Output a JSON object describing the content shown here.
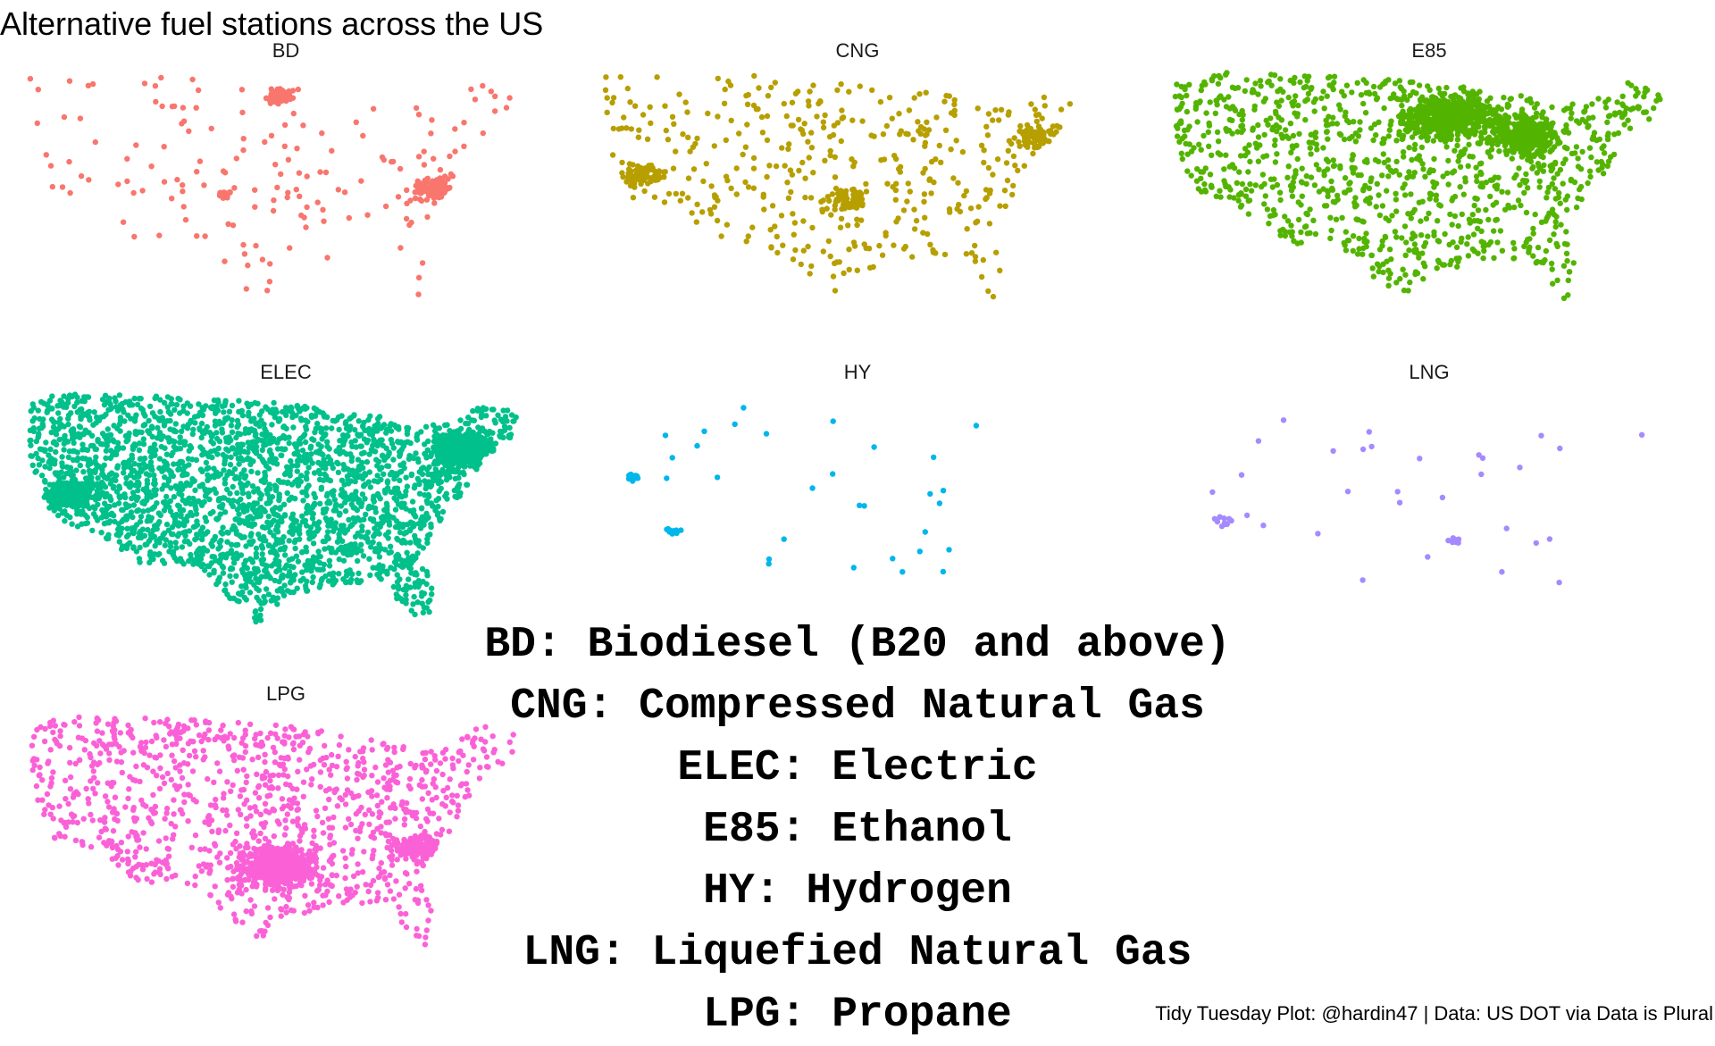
{
  "title": "Alternative fuel stations across the US",
  "caption": "Tidy Tuesday Plot: @hardin47 | Data: US DOT via Data is Plural",
  "panels": [
    {
      "code": "BD",
      "color": "#F8766D",
      "density": "low"
    },
    {
      "code": "CNG",
      "color": "#B79F00",
      "density": "medium"
    },
    {
      "code": "E85",
      "color": "#53B400",
      "density": "high"
    },
    {
      "code": "ELEC",
      "color": "#00C08B",
      "density": "very-high"
    },
    {
      "code": "HY",
      "color": "#00B6EB",
      "density": "very-low"
    },
    {
      "code": "LNG",
      "color": "#A58AFF",
      "density": "very-low"
    },
    {
      "code": "LPG",
      "color": "#FB61D7",
      "density": "high"
    }
  ],
  "legend": [
    "BD: Biodiesel (B20 and above)",
    "CNG: Compressed Natural Gas",
    "ELEC: Electric",
    "E85: Ethanol",
    "HY: Hydrogen",
    "LNG: Liquefied Natural Gas",
    "LPG: Propane"
  ]
}
